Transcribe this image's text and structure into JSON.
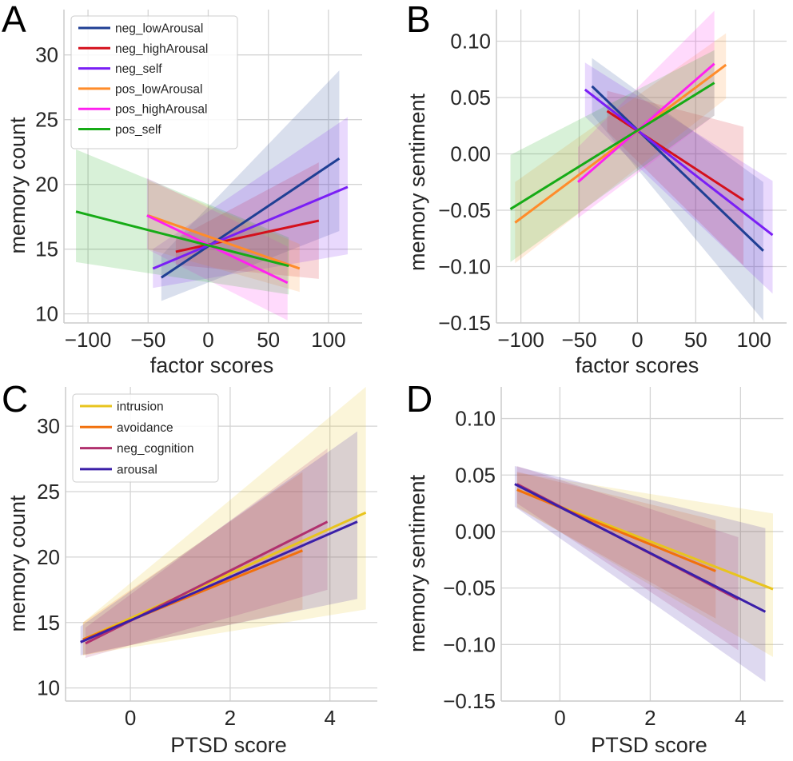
{
  "chart_data": [
    {
      "panel": "A",
      "type": "line",
      "title": "",
      "xlabel": "factor scores",
      "ylabel": "memory count",
      "xlim": [
        -120,
        128
      ],
      "ylim": [
        9.3,
        33.5
      ],
      "xticks": [
        -100,
        -50,
        0,
        50,
        100
      ],
      "xtick_labels": [
        "−100",
        "−50",
        "0",
        "50",
        "100"
      ],
      "yticks": [
        10,
        15,
        20,
        25,
        30
      ],
      "ytick_labels": [
        "10",
        "15",
        "20",
        "25",
        "30"
      ],
      "grid": true,
      "legend": "top-left",
      "series": [
        {
          "name": "neg_lowArousal",
          "color": "#1f3f94",
          "x": [
            -39,
            109
          ],
          "y": [
            12.8,
            22.0
          ],
          "ci_lower": [
            11.0,
            16.4
          ],
          "ci_upper": [
            14.5,
            28.8
          ]
        },
        {
          "name": "neg_highArousal",
          "color": "#d4101c",
          "x": [
            -27,
            92
          ],
          "y": [
            14.8,
            17.2
          ],
          "ci_lower": [
            13.8,
            12.7
          ],
          "ci_upper": [
            15.8,
            21.7
          ]
        },
        {
          "name": "neg_self",
          "color": "#7a1ff5",
          "x": [
            -46,
            116
          ],
          "y": [
            13.5,
            19.8
          ],
          "ci_lower": [
            12.0,
            14.6
          ],
          "ci_upper": [
            15.0,
            25.2
          ]
        },
        {
          "name": "pos_lowArousal",
          "color": "#ff8c2a",
          "x": [
            -50,
            76
          ],
          "y": [
            17.6,
            13.5
          ],
          "ci_lower": [
            15.0,
            11.7
          ],
          "ci_upper": [
            20.3,
            15.4
          ]
        },
        {
          "name": "pos_highArousal",
          "color": "#ff21f0",
          "x": [
            -51,
            66
          ],
          "y": [
            17.6,
            12.4
          ],
          "ci_lower": [
            15.0,
            9.5
          ],
          "ci_upper": [
            20.5,
            15.2
          ]
        },
        {
          "name": "pos_self",
          "color": "#16ab16",
          "x": [
            -110,
            67
          ],
          "y": [
            17.9,
            13.7
          ],
          "ci_lower": [
            14.0,
            11.5
          ],
          "ci_upper": [
            22.7,
            15.9
          ]
        }
      ]
    },
    {
      "panel": "B",
      "type": "line",
      "title": "",
      "xlabel": "factor scores",
      "ylabel": "memory sentiment",
      "xlim": [
        -121,
        128
      ],
      "ylim": [
        -0.15,
        0.128
      ],
      "xticks": [
        -100,
        -50,
        0,
        50,
        100
      ],
      "xtick_labels": [
        "−100",
        "−50",
        "0",
        "50",
        "100"
      ],
      "yticks": [
        -0.15,
        -0.1,
        -0.05,
        0.0,
        0.05,
        0.1
      ],
      "ytick_labels": [
        "−0.15",
        "−0.10",
        "−0.05",
        "0.00",
        "0.05",
        "0.10"
      ],
      "grid": true,
      "legend": "none",
      "series": [
        {
          "name": "neg_lowArousal",
          "color": "#1f3f94",
          "x": [
            -39,
            108
          ],
          "y": [
            0.06,
            -0.086
          ],
          "ci_lower": [
            0.035,
            -0.148
          ],
          "ci_upper": [
            0.085,
            -0.025
          ]
        },
        {
          "name": "neg_highArousal",
          "color": "#d4101c",
          "x": [
            -26,
            91
          ],
          "y": [
            0.038,
            -0.041
          ],
          "ci_lower": [
            0.02,
            -0.099
          ],
          "ci_upper": [
            0.056,
            0.024
          ]
        },
        {
          "name": "neg_self",
          "color": "#7a1ff5",
          "x": [
            -45,
            116
          ],
          "y": [
            0.057,
            -0.072
          ],
          "ci_lower": [
            0.033,
            -0.124
          ],
          "ci_upper": [
            0.081,
            -0.024
          ]
        },
        {
          "name": "pos_lowArousal",
          "color": "#ff8c2a",
          "x": [
            -105,
            76
          ],
          "y": [
            -0.061,
            0.079
          ],
          "ci_lower": [
            -0.097,
            0.049
          ],
          "ci_upper": [
            -0.025,
            0.107
          ]
        },
        {
          "name": "pos_highArousal",
          "color": "#ff21f0",
          "x": [
            -51,
            66
          ],
          "y": [
            -0.025,
            0.08
          ],
          "ci_lower": [
            -0.057,
            0.034
          ],
          "ci_upper": [
            0.006,
            0.127
          ]
        },
        {
          "name": "pos_self",
          "color": "#16ab16",
          "x": [
            -109,
            66
          ],
          "y": [
            -0.049,
            0.063
          ],
          "ci_lower": [
            -0.096,
            0.034
          ],
          "ci_upper": [
            -0.001,
            0.092
          ]
        }
      ]
    },
    {
      "panel": "C",
      "type": "line",
      "title": "",
      "xlabel": "PTSD score",
      "ylabel": "memory count",
      "xlim": [
        -1.3,
        4.95
      ],
      "ylim": [
        9.0,
        33.0
      ],
      "xticks": [
        0,
        2,
        4
      ],
      "xtick_labels": [
        "0",
        "2",
        "4"
      ],
      "yticks": [
        10,
        15,
        20,
        25,
        30
      ],
      "ytick_labels": [
        "10",
        "15",
        "20",
        "25",
        "30"
      ],
      "grid": true,
      "legend": "top-left",
      "series": [
        {
          "name": "intrusion",
          "color": "#e8c41e",
          "x": [
            -0.95,
            4.72
          ],
          "y": [
            13.7,
            23.4
          ],
          "ci_lower": [
            12.5,
            16.0
          ],
          "ci_upper": [
            15.0,
            33.0
          ]
        },
        {
          "name": "avoidance",
          "color": "#f2700c",
          "x": [
            -0.95,
            3.45
          ],
          "y": [
            13.7,
            20.5
          ],
          "ci_lower": [
            12.5,
            16.0
          ],
          "ci_upper": [
            15.0,
            26.5
          ]
        },
        {
          "name": "neg_cognition",
          "color": "#b0306e",
          "x": [
            -0.9,
            3.95
          ],
          "y": [
            13.4,
            22.7
          ],
          "ci_lower": [
            12.3,
            17.5
          ],
          "ci_upper": [
            14.6,
            28.3
          ]
        },
        {
          "name": "arousal",
          "color": "#3a1fa8",
          "x": [
            -1.0,
            4.55
          ],
          "y": [
            13.5,
            22.7
          ],
          "ci_lower": [
            12.5,
            16.8
          ],
          "ci_upper": [
            14.7,
            29.6
          ]
        }
      ]
    },
    {
      "panel": "D",
      "type": "line",
      "title": "",
      "xlabel": "PTSD score",
      "ylabel": "memory sentiment",
      "xlim": [
        -1.3,
        4.95
      ],
      "ylim": [
        -0.15,
        0.128
      ],
      "xticks": [
        0,
        2,
        4
      ],
      "xtick_labels": [
        "0",
        "2",
        "4"
      ],
      "yticks": [
        -0.15,
        -0.1,
        -0.05,
        0.0,
        0.05,
        0.1
      ],
      "ytick_labels": [
        "−0.15",
        "−0.10",
        "−0.05",
        "0.00",
        "0.05",
        "0.10"
      ],
      "grid": true,
      "legend": "none",
      "series": [
        {
          "name": "intrusion",
          "color": "#e8c41e",
          "x": [
            -0.95,
            4.72
          ],
          "y": [
            0.037,
            -0.051
          ],
          "ci_lower": [
            0.022,
            -0.111
          ],
          "ci_upper": [
            0.052,
            0.016
          ]
        },
        {
          "name": "avoidance",
          "color": "#f2700c",
          "x": [
            -0.95,
            3.45
          ],
          "y": [
            0.037,
            -0.035
          ],
          "ci_lower": [
            0.021,
            -0.077
          ],
          "ci_upper": [
            0.053,
            0.01
          ]
        },
        {
          "name": "neg_cognition",
          "color": "#b0306e",
          "x": [
            -0.95,
            3.95
          ],
          "y": [
            0.042,
            -0.06
          ],
          "ci_lower": [
            0.025,
            -0.105
          ],
          "ci_upper": [
            0.058,
            -0.005
          ]
        },
        {
          "name": "arousal",
          "color": "#3a1fa8",
          "x": [
            -1.0,
            4.55
          ],
          "y": [
            0.042,
            -0.071
          ],
          "ci_lower": [
            0.022,
            -0.133
          ],
          "ci_upper": [
            0.058,
            0.003
          ]
        }
      ]
    }
  ]
}
